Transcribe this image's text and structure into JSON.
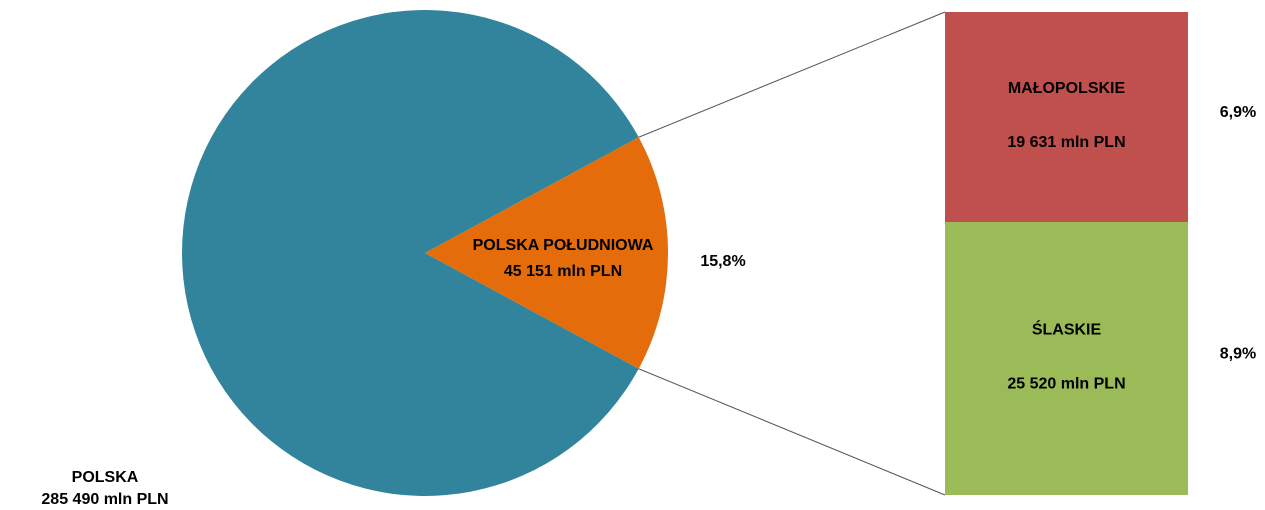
{
  "chart_data": {
    "type": "bar-of-pie",
    "total": {
      "name": "POLSKA",
      "value": 285490,
      "value_label": "285 490 mln PLN",
      "color": "#31849b"
    },
    "slice": {
      "name": "POLSKA POŁUDNIOWA",
      "value": 45151,
      "value_label": "45 151 mln PLN",
      "share": 15.8,
      "share_label": "15,8%",
      "color": "#e46c0a"
    },
    "breakdown": [
      {
        "name": "MAŁOPOLSKIE",
        "value": 19631,
        "value_label": "19 631 mln PLN",
        "share": 6.9,
        "share_label": "6,9%",
        "color": "#c0504d"
      },
      {
        "name": "ŚLASKIE",
        "value": 25520,
        "value_label": "25 520 mln PLN",
        "share": 8.9,
        "share_label": "8,9%",
        "color": "#9bbb59"
      }
    ]
  }
}
